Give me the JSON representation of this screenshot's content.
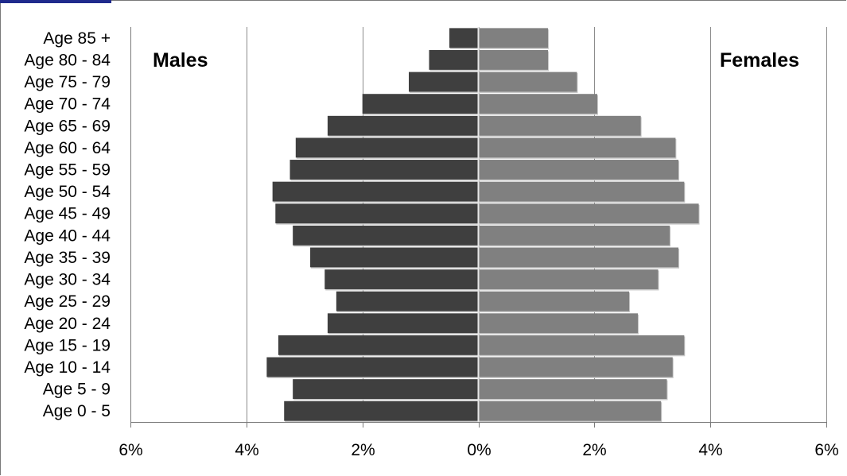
{
  "chart_data": {
    "type": "bar",
    "orientation": "horizontal",
    "layout": "population-pyramid",
    "categories": [
      "Age 85 +",
      "Age 80 - 84",
      "Age 75 - 79",
      "Age 70 - 74",
      "Age 65 - 69",
      "Age 60 - 64",
      "Age 55 - 59",
      "Age 50 - 54",
      "Age 45 - 49",
      "Age 40 - 44",
      "Age 35 - 39",
      "Age 30 - 34",
      "Age 25 - 29",
      "Age 20 - 24",
      "Age 15 - 19",
      "Age 10 - 14",
      "Age 5 - 9",
      "Age 0 - 5"
    ],
    "series": [
      {
        "name": "Males",
        "color": "#3f3f3f",
        "values": [
          0.5,
          0.85,
          1.2,
          2.0,
          2.6,
          3.15,
          3.25,
          3.55,
          3.5,
          3.2,
          2.9,
          2.65,
          2.45,
          2.6,
          3.45,
          3.65,
          3.2,
          3.35
        ]
      },
      {
        "name": "Females",
        "color": "#808080",
        "values": [
          1.2,
          1.2,
          1.7,
          2.05,
          2.8,
          3.4,
          3.45,
          3.55,
          3.8,
          3.3,
          3.45,
          3.1,
          2.6,
          2.75,
          3.55,
          3.35,
          3.25,
          3.15
        ]
      }
    ],
    "xlim": [
      -6,
      6
    ],
    "x_ticks": [
      -6,
      -4,
      -2,
      0,
      2,
      4,
      6
    ],
    "x_tick_labels": [
      "6%",
      "4%",
      "2%",
      "0%",
      "2%",
      "4%",
      "6%"
    ],
    "grid": "vertical",
    "title": "",
    "xlabel": "",
    "ylabel": ""
  }
}
